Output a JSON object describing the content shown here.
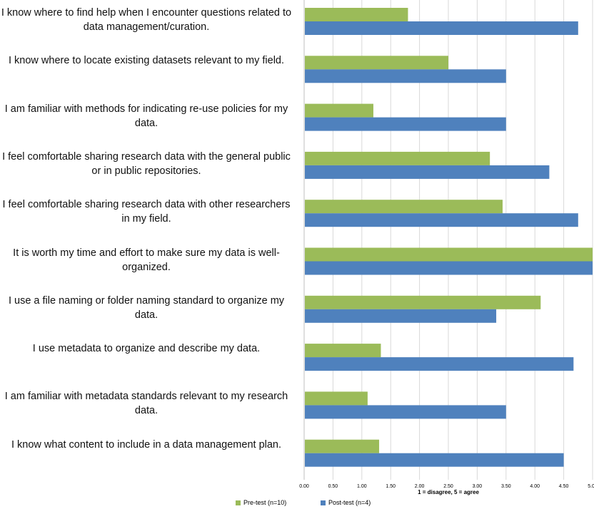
{
  "chart_data": {
    "type": "bar",
    "orientation": "horizontal",
    "categories": [
      "I know where to find help when I encounter questions related to data management/curation.",
      "I know where to locate existing datasets relevant to my field.",
      "I am familiar with methods for indicating re-use policies for my data.",
      "I feel comfortable sharing research data with the general public or in public repositories.",
      "I feel comfortable sharing research data with other researchers in my field.",
      "It is worth my time and effort to make sure my data is well-organized.",
      "I use a file naming or folder naming standard to organize my data.",
      "I use metadata to organize and describe my data.",
      "I am familiar with metadata standards relevant to my research data.",
      "I know what content to include in a data management plan."
    ],
    "series": [
      {
        "name": "Pre-test (n=10)",
        "color": "#9bbb59",
        "values": [
          1.8,
          2.5,
          1.2,
          3.22,
          3.44,
          5.0,
          4.1,
          1.33,
          1.1,
          1.3
        ]
      },
      {
        "name": "Post-test (n=4)",
        "color": "#4f81bd",
        "values": [
          4.75,
          3.5,
          3.5,
          4.25,
          4.75,
          5.0,
          3.33,
          4.67,
          3.5,
          4.5
        ]
      }
    ],
    "xlim": [
      0,
      5
    ],
    "xticks": [
      "0.00",
      "0.50",
      "1.00",
      "1.50",
      "2.00",
      "2.50",
      "3.00",
      "3.50",
      "4.00",
      "4.50",
      "5.00"
    ],
    "xlabel": "1 = disagree, 5 = agree",
    "grid": true,
    "legend": "bottom"
  }
}
